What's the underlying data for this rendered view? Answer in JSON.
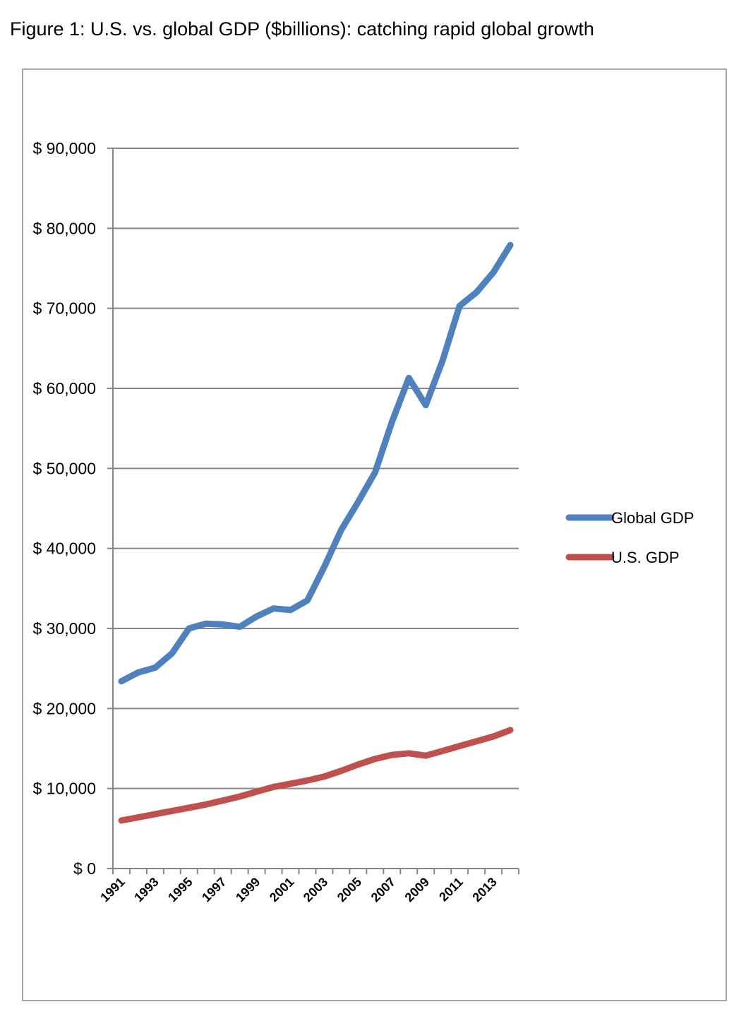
{
  "figure": {
    "title": "Figure 1: U.S. vs. global GDP ($billions): catching rapid global growth"
  },
  "chart_data": {
    "type": "line",
    "title": "Figure 1: U.S. vs. global GDP ($billions): catching rapid global growth",
    "xlabel": "",
    "ylabel": "",
    "x": [
      1991,
      1992,
      1993,
      1994,
      1995,
      1996,
      1997,
      1998,
      1999,
      2000,
      2001,
      2002,
      2003,
      2004,
      2005,
      2006,
      2007,
      2008,
      2009,
      2010,
      2011,
      2012,
      2013,
      2014
    ],
    "x_tick_labels": [
      "1991",
      "1993",
      "1995",
      "1997",
      "1999",
      "2001",
      "2003",
      "2005",
      "2007",
      "2009",
      "2011",
      "2013"
    ],
    "y_tick_labels": [
      "$ 0",
      "$ 10,000",
      "$ 20,000",
      "$ 30,000",
      "$ 40,000",
      "$ 50,000",
      "$ 60,000",
      "$ 70,000",
      "$ 80,000",
      "$ 90,000"
    ],
    "ylim": [
      0,
      90000
    ],
    "y_major_step": 10000,
    "grid": true,
    "legend_position": "right",
    "series": [
      {
        "name": "Global GDP",
        "color": "#4f81bd",
        "values": [
          23400,
          24500,
          25100,
          26900,
          30000,
          30600,
          30500,
          30200,
          31500,
          32500,
          32300,
          33500,
          37700,
          42300,
          45800,
          49500,
          55800,
          61300,
          57900,
          63500,
          70300,
          72000,
          74500,
          77900
        ]
      },
      {
        "name": "U.S. GDP",
        "color": "#c0504d",
        "values": [
          6000,
          6400,
          6800,
          7200,
          7600,
          8000,
          8500,
          9000,
          9600,
          10200,
          10600,
          11000,
          11500,
          12200,
          13000,
          13700,
          14200,
          14400,
          14100,
          14700,
          15300,
          15900,
          16500,
          17300
        ]
      }
    ]
  }
}
